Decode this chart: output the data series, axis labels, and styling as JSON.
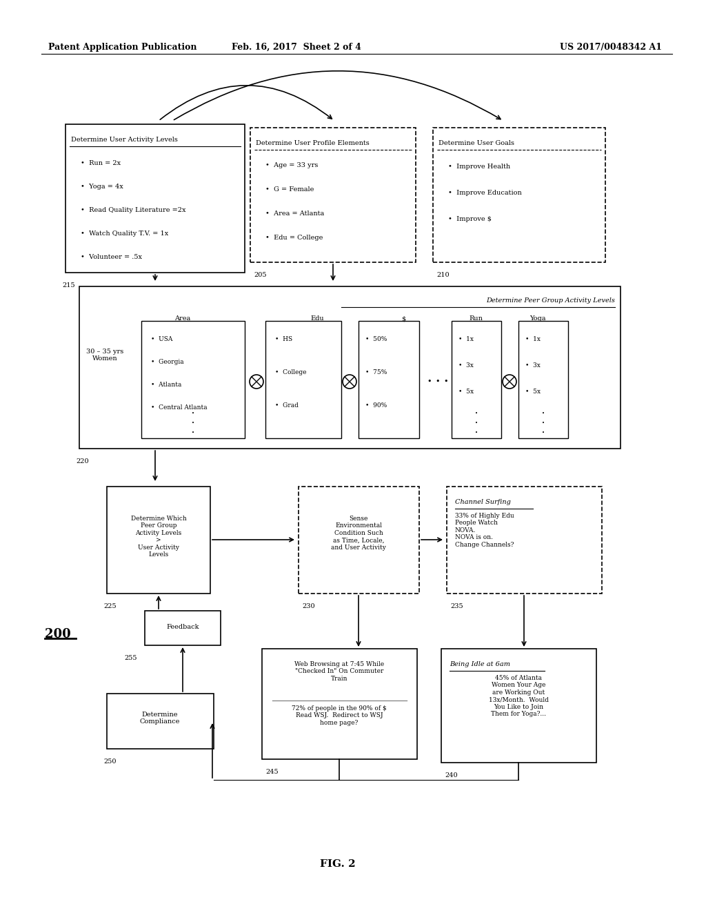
{
  "header_left": "Patent Application Publication",
  "header_mid": "Feb. 16, 2017  Sheet 2 of 4",
  "header_right": "US 2017/0048342 A1",
  "fig_label": "FIG. 2",
  "diagram_label": "200",
  "bg_color": "#ffffff",
  "activity_items": [
    "Run = 2x",
    "Yoga = 4x",
    "Read Quality Literature =2x",
    "Watch Quality T.V. = 1x",
    "Volunteer = .5x"
  ],
  "profile_items": [
    "Age = 33 yrs",
    "G = Female",
    "Area = Atlanta",
    "Edu = College"
  ],
  "goals_items": [
    "Improve Health",
    "Improve Education",
    "Improve $"
  ],
  "area_items": [
    "USA",
    "Georgia",
    "Atlanta",
    "Central Atlanta"
  ],
  "edu_items": [
    "HS",
    "College",
    "Grad"
  ],
  "dollar_items": [
    "50%",
    "75%",
    "90%"
  ],
  "run_items": [
    "1x",
    "3x",
    "5x"
  ],
  "yoga_items": [
    "1x",
    "3x",
    "5x"
  ]
}
